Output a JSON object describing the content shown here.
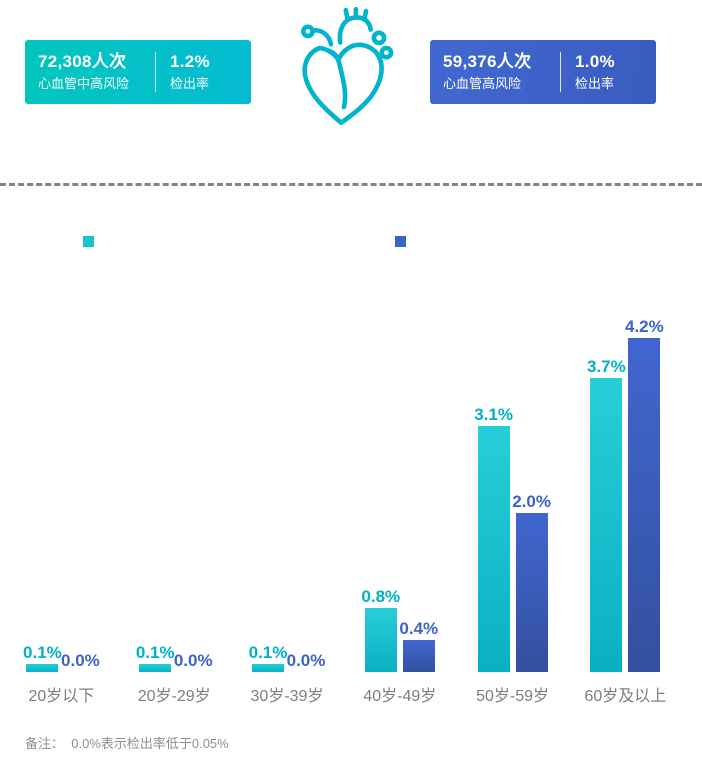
{
  "header": {
    "left_badge": {
      "count": "72,308人次",
      "label": "心血管中高风险",
      "rate": "1.2%",
      "rate_label": "检出率",
      "color": "#05c1ca"
    },
    "right_badge": {
      "count": "59,376人次",
      "label": "心血管高风险",
      "rate": "1.0%",
      "rate_label": "检出率",
      "color": "#3c63c9"
    },
    "heart_icon": "anatomical-heart-outline",
    "heart_icon_color": "#00b4cb"
  },
  "chart_data": {
    "type": "bar",
    "categories": [
      "20岁以下",
      "20岁-29岁",
      "30岁-39岁",
      "40岁-49岁",
      "50岁-59岁",
      "60岁及以上"
    ],
    "series": [
      {
        "name": "心血管中高风险",
        "color": "#26cfd8",
        "color_bottom": "#0bafc2",
        "label_color": "#00b1c5",
        "swatch_color": "#12c4ce",
        "values": [
          0.1,
          0.1,
          0.1,
          0.8,
          3.1,
          3.7
        ],
        "labels": [
          "0.1%",
          "0.1%",
          "0.1%",
          "0.8%",
          "3.1%",
          "3.7%"
        ]
      },
      {
        "name": "心血管高风险",
        "color": "#4166d0",
        "color_bottom": "#33509e",
        "label_color": "#3c63c9",
        "swatch_color": "#3e63c8",
        "values": [
          0.0,
          0.0,
          0.0,
          0.4,
          2.0,
          4.2
        ],
        "labels": [
          "0.0%",
          "0.0%",
          "0.0%",
          "0.4%",
          "2.0%",
          "4.2%"
        ]
      }
    ],
    "ylim": [
      0,
      4.6
    ],
    "grid": false,
    "legend_position": "top",
    "legend_labels_visible": false,
    "title": "",
    "xlabel": "",
    "ylabel": ""
  },
  "footnote": "备注：  0.0%表示检出率低于0.05%"
}
